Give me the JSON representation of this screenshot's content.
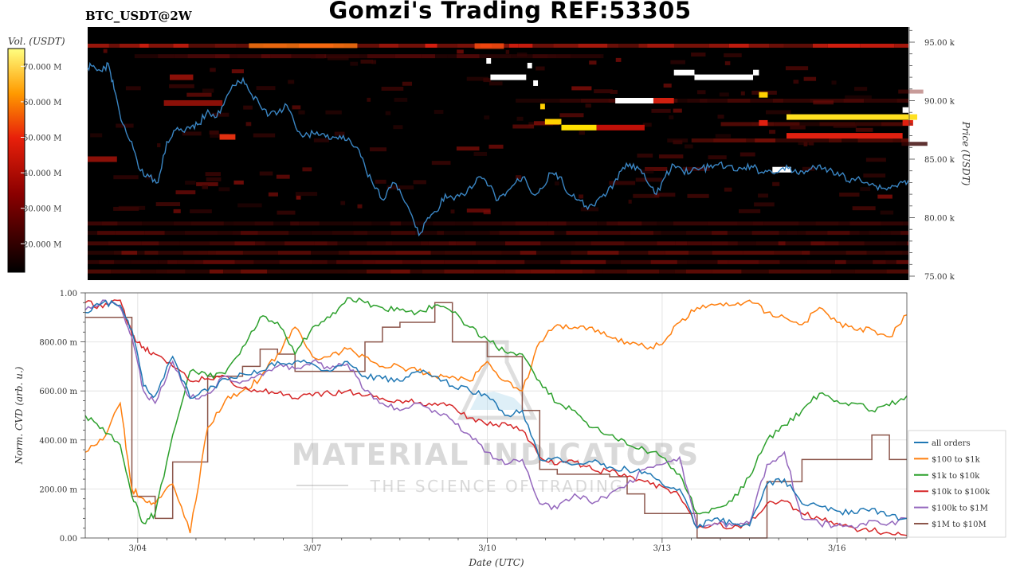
{
  "header": {
    "title": "Gomzi's Trading REF:53305",
    "symbol": "BTC_USDT@2W"
  },
  "watermark": {
    "line1": "MATERIAL INDICATORS",
    "line2": "THE SCIENCE OF TRADING"
  },
  "colors": {
    "heatmap_bg": "#000000",
    "price_line": "#3a86c4",
    "all_orders": "#1f77b4",
    "s100_1k": "#ff7f0e",
    "s1k_10k": "#2ca02c",
    "s10k_100k": "#d62728",
    "s100k_1m": "#9467bd",
    "s1m_10m": "#8c564b"
  },
  "chart_data": [
    {
      "type": "heatmap",
      "colorbar_label": "Vol. (USDT)",
      "colorbar_ticks": [
        "20.000 M",
        "30.000 M",
        "40.000 M",
        "50.000 M",
        "60.000 M",
        "70.000 M"
      ],
      "colorbar_range": [
        12,
        75
      ],
      "ylabel": "Price (USDT)",
      "yticks": [
        {
          "label": "75.00 k",
          "value": 75000
        },
        {
          "label": "80.00 k",
          "value": 80000
        },
        {
          "label": "85.00 k",
          "value": 85000
        },
        {
          "label": "90.00 k",
          "value": 90000
        },
        {
          "label": "95.00 k",
          "value": 95000
        }
      ],
      "ylim": [
        75000,
        96000
      ],
      "xlim": [
        2.2,
        16.2
      ],
      "price_series_x": [
        2.2,
        2.3,
        2.45,
        2.55,
        2.65,
        2.8,
        2.95,
        3.1,
        3.25,
        3.4,
        3.55,
        3.7,
        3.85,
        3.97,
        4.1,
        4.25,
        4.4,
        4.55,
        4.7,
        4.85,
        5.0,
        5.15,
        5.3,
        5.45,
        5.6,
        5.75,
        5.9,
        6.05,
        6.2,
        6.35,
        6.5,
        6.65,
        6.8,
        6.95,
        7.1,
        7.25,
        7.4,
        7.55,
        7.7,
        7.85,
        8.0,
        8.15,
        8.3,
        8.45,
        8.6,
        8.75,
        8.9,
        9.05,
        9.2,
        9.35,
        9.5,
        9.65,
        9.8,
        9.95,
        10.1,
        10.25,
        10.4,
        10.55,
        10.7,
        10.85,
        11.0,
        11.15,
        11.3,
        11.45,
        11.6,
        11.75,
        11.9,
        12.05,
        12.2,
        12.35,
        12.5,
        12.65,
        12.8,
        12.95,
        13.1,
        13.25,
        13.4,
        13.55,
        13.7,
        13.85,
        14.0,
        14.15,
        14.3,
        14.45,
        14.6,
        14.75,
        14.9,
        15.05,
        15.2,
        15.35,
        15.5,
        15.65,
        15.8,
        15.95,
        16.1,
        16.2
      ],
      "price_series_y": [
        92800,
        93000,
        92500,
        93200,
        91000,
        88000,
        86500,
        84000,
        83500,
        83000,
        86500,
        87500,
        87300,
        87800,
        88000,
        89200,
        88600,
        90100,
        91300,
        91900,
        90500,
        89500,
        88800,
        89000,
        89600,
        87700,
        87000,
        87200,
        87200,
        86700,
        87000,
        86800,
        86000,
        84000,
        82500,
        81500,
        83000,
        82000,
        80500,
        78500,
        80000,
        80500,
        82000,
        81500,
        82000,
        82500,
        83500,
        82700,
        81500,
        82200,
        83000,
        83500,
        82000,
        82500,
        83800,
        83500,
        82000,
        81500,
        81000,
        81000,
        82000,
        82500,
        84000,
        84600,
        84200,
        83000,
        82000,
        83500,
        84500,
        84000,
        84000,
        84200,
        84300,
        84500,
        84400,
        84000,
        84300,
        84300,
        83900,
        84000,
        84000,
        84200,
        83800,
        84000,
        84300,
        84200,
        84000,
        83700,
        83000,
        83500,
        83000,
        82700,
        82500,
        82700,
        83000,
        83200
      ]
    },
    {
      "type": "line",
      "xlabel": "Date (UTC)",
      "ylabel": "Norm. CVD (arb. u.)",
      "ylim": [
        0,
        1
      ],
      "xlim": [
        3.1,
        17.2
      ],
      "xticks": [
        {
          "label": "3/04",
          "value": 4
        },
        {
          "label": "3/07",
          "value": 7
        },
        {
          "label": "3/10",
          "value": 10
        },
        {
          "label": "3/13",
          "value": 13
        },
        {
          "label": "3/16",
          "value": 16
        }
      ],
      "yticks": [
        {
          "label": "0.00",
          "value": 0
        },
        {
          "label": "200.00 m",
          "value": 0.2
        },
        {
          "label": "400.00 m",
          "value": 0.4
        },
        {
          "label": "600.00 m",
          "value": 0.6
        },
        {
          "label": "800.00 m",
          "value": 0.8
        },
        {
          "label": "1.00",
          "value": 1
        }
      ],
      "grid": true,
      "legend": "right",
      "x": [
        3.1,
        3.4,
        3.7,
        3.9,
        4.1,
        4.3,
        4.6,
        4.9,
        5.2,
        5.5,
        5.8,
        6.1,
        6.4,
        6.7,
        7.0,
        7.3,
        7.6,
        7.9,
        8.2,
        8.5,
        8.8,
        9.1,
        9.4,
        9.7,
        10.0,
        10.3,
        10.6,
        10.9,
        11.2,
        11.5,
        11.8,
        12.1,
        12.4,
        12.7,
        13.0,
        13.3,
        13.6,
        13.9,
        14.2,
        14.5,
        14.8,
        15.1,
        15.4,
        15.7,
        16.0,
        16.3,
        16.6,
        16.9,
        17.2
      ],
      "series": [
        {
          "name": "all orders",
          "color_key": "all_orders",
          "values": [
            0.92,
            0.96,
            0.95,
            0.85,
            0.62,
            0.58,
            0.74,
            0.57,
            0.6,
            0.65,
            0.67,
            0.68,
            0.72,
            0.72,
            0.71,
            0.68,
            0.72,
            0.66,
            0.65,
            0.64,
            0.68,
            0.66,
            0.62,
            0.6,
            0.58,
            0.5,
            0.52,
            0.32,
            0.33,
            0.3,
            0.31,
            0.29,
            0.28,
            0.27,
            0.22,
            0.2,
            0.04,
            0.08,
            0.06,
            0.05,
            0.22,
            0.24,
            0.14,
            0.13,
            0.11,
            0.1,
            0.12,
            0.09,
            0.08
          ]
        },
        {
          "name": "$100 to $1k",
          "color_key": "s100_1k",
          "values": [
            0.35,
            0.4,
            0.55,
            0.2,
            0.16,
            0.14,
            0.22,
            0.02,
            0.45,
            0.56,
            0.6,
            0.65,
            0.75,
            0.86,
            0.74,
            0.74,
            0.77,
            0.74,
            0.7,
            0.7,
            0.68,
            0.66,
            0.66,
            0.64,
            0.72,
            0.64,
            0.6,
            0.8,
            0.87,
            0.86,
            0.86,
            0.82,
            0.8,
            0.78,
            0.79,
            0.88,
            0.94,
            0.95,
            0.95,
            0.97,
            0.92,
            0.9,
            0.87,
            0.94,
            0.88,
            0.85,
            0.85,
            0.82,
            0.91
          ]
        },
        {
          "name": "$1k to $10k",
          "color_key": "s1k_10k",
          "values": [
            0.5,
            0.45,
            0.38,
            0.17,
            0.06,
            0.1,
            0.42,
            0.68,
            0.66,
            0.67,
            0.78,
            0.9,
            0.88,
            0.75,
            0.86,
            0.9,
            0.98,
            0.96,
            0.94,
            0.93,
            0.92,
            0.95,
            0.92,
            0.86,
            0.81,
            0.76,
            0.75,
            0.64,
            0.55,
            0.52,
            0.45,
            0.42,
            0.38,
            0.36,
            0.33,
            0.26,
            0.1,
            0.12,
            0.15,
            0.25,
            0.4,
            0.46,
            0.52,
            0.59,
            0.56,
            0.55,
            0.52,
            0.54,
            0.58
          ]
        },
        {
          "name": "$10k to $100k",
          "color_key": "s10k_100k",
          "values": [
            0.96,
            0.94,
            0.97,
            0.83,
            0.78,
            0.75,
            0.7,
            0.64,
            0.65,
            0.66,
            0.61,
            0.6,
            0.59,
            0.57,
            0.58,
            0.59,
            0.6,
            0.58,
            0.57,
            0.56,
            0.55,
            0.55,
            0.54,
            0.49,
            0.46,
            0.47,
            0.44,
            0.33,
            0.3,
            0.31,
            0.28,
            0.27,
            0.25,
            0.23,
            0.21,
            0.17,
            0.04,
            0.06,
            0.04,
            0.06,
            0.14,
            0.15,
            0.1,
            0.08,
            0.06,
            0.04,
            0.03,
            0.02,
            0.01
          ]
        },
        {
          "name": "$100k to $1M",
          "color_key": "s100k_1m",
          "values": [
            0.93,
            0.97,
            0.94,
            0.82,
            0.6,
            0.55,
            0.72,
            0.57,
            0.59,
            0.66,
            0.64,
            0.67,
            0.7,
            0.69,
            0.72,
            0.69,
            0.71,
            0.6,
            0.55,
            0.52,
            0.55,
            0.52,
            0.48,
            0.42,
            0.35,
            0.3,
            0.32,
            0.14,
            0.12,
            0.18,
            0.14,
            0.18,
            0.22,
            0.28,
            0.3,
            0.33,
            0.04,
            0.06,
            0.05,
            0.06,
            0.3,
            0.35,
            0.08,
            0.06,
            0.05,
            0.04,
            0.07,
            0.06,
            0.08
          ]
        },
        {
          "name": "$1M to $10M",
          "color_key": "s1m_10m",
          "values": [
            0.9,
            0.9,
            0.9,
            0.17,
            0.17,
            0.08,
            0.31,
            0.31,
            0.66,
            0.66,
            0.7,
            0.77,
            0.75,
            0.68,
            0.68,
            0.68,
            0.68,
            0.8,
            0.86,
            0.88,
            0.88,
            0.96,
            0.8,
            0.8,
            0.74,
            0.74,
            0.52,
            0.28,
            0.26,
            0.26,
            0.26,
            0.25,
            0.18,
            0.1,
            0.1,
            0.1,
            0.0,
            0.0,
            0.0,
            0.0,
            0.23,
            0.23,
            0.32,
            0.32,
            0.32,
            0.32,
            0.42,
            0.32,
            0.32
          ]
        }
      ]
    }
  ]
}
